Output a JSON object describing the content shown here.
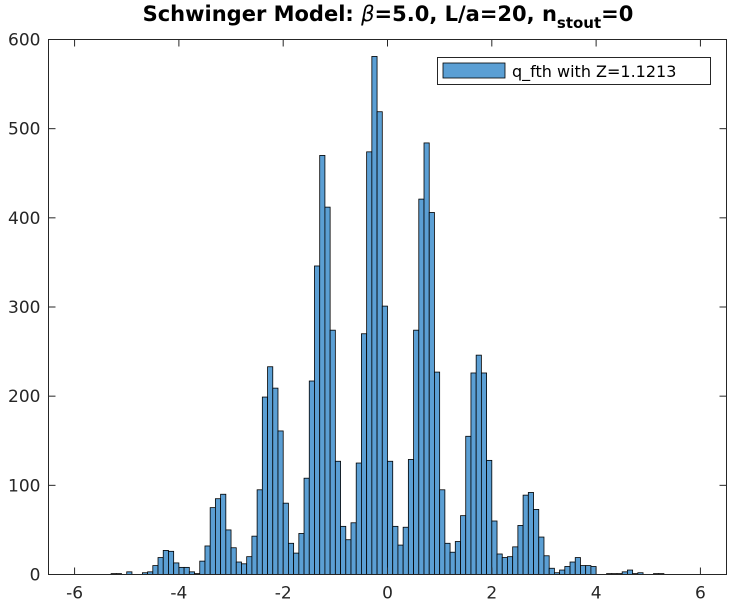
{
  "chart_data": {
    "type": "bar",
    "title": {
      "prefix": "Schwinger Model: ",
      "beta_symbol": "β",
      "middle": "=5.0, L/a=20, n",
      "subscript": "stout",
      "suffix": "=0"
    },
    "legend": {
      "label": "q_fth with Z=1.1213",
      "placement": "top-right"
    },
    "xlim": [
      -6.5,
      6.5
    ],
    "ylim": [
      0,
      600
    ],
    "xticks": [
      -6,
      -4,
      -2,
      0,
      2,
      4,
      6
    ],
    "yticks": [
      0,
      100,
      200,
      300,
      400,
      500,
      600
    ],
    "xtick_labels": [
      "-6",
      "-4",
      "-2",
      "0",
      "2",
      "4",
      "6"
    ],
    "ytick_labels": [
      "0",
      "100",
      "200",
      "300",
      "400",
      "500",
      "600"
    ],
    "bin_width": 0.1,
    "bar_color": "#5b9fd4",
    "bar_edge_color": "#000000",
    "bins": [
      {
        "x": -5.25,
        "y": 1
      },
      {
        "x": -5.15,
        "y": 1
      },
      {
        "x": -4.95,
        "y": 3
      },
      {
        "x": -4.65,
        "y": 2
      },
      {
        "x": -4.55,
        "y": 3
      },
      {
        "x": -4.45,
        "y": 10
      },
      {
        "x": -4.35,
        "y": 19
      },
      {
        "x": -4.25,
        "y": 27
      },
      {
        "x": -4.15,
        "y": 26
      },
      {
        "x": -4.05,
        "y": 13
      },
      {
        "x": -3.95,
        "y": 8
      },
      {
        "x": -3.85,
        "y": 8
      },
      {
        "x": -3.75,
        "y": 3
      },
      {
        "x": -3.65,
        "y": 1
      },
      {
        "x": -3.55,
        "y": 15
      },
      {
        "x": -3.45,
        "y": 32
      },
      {
        "x": -3.35,
        "y": 75
      },
      {
        "x": -3.25,
        "y": 85
      },
      {
        "x": -3.15,
        "y": 90
      },
      {
        "x": -3.05,
        "y": 50
      },
      {
        "x": -2.95,
        "y": 30
      },
      {
        "x": -2.85,
        "y": 14
      },
      {
        "x": -2.75,
        "y": 12
      },
      {
        "x": -2.65,
        "y": 20
      },
      {
        "x": -2.55,
        "y": 43
      },
      {
        "x": -2.45,
        "y": 95
      },
      {
        "x": -2.35,
        "y": 199
      },
      {
        "x": -2.25,
        "y": 233
      },
      {
        "x": -2.15,
        "y": 209
      },
      {
        "x": -2.05,
        "y": 161
      },
      {
        "x": -1.95,
        "y": 80
      },
      {
        "x": -1.85,
        "y": 35
      },
      {
        "x": -1.75,
        "y": 24
      },
      {
        "x": -1.65,
        "y": 46
      },
      {
        "x": -1.55,
        "y": 108
      },
      {
        "x": -1.45,
        "y": 217
      },
      {
        "x": -1.35,
        "y": 346
      },
      {
        "x": -1.25,
        "y": 470
      },
      {
        "x": -1.15,
        "y": 412
      },
      {
        "x": -1.05,
        "y": 274
      },
      {
        "x": -0.95,
        "y": 127
      },
      {
        "x": -0.85,
        "y": 54
      },
      {
        "x": -0.75,
        "y": 39
      },
      {
        "x": -0.65,
        "y": 58
      },
      {
        "x": -0.55,
        "y": 125
      },
      {
        "x": -0.45,
        "y": 270
      },
      {
        "x": -0.35,
        "y": 474
      },
      {
        "x": -0.25,
        "y": 581
      },
      {
        "x": -0.15,
        "y": 519
      },
      {
        "x": -0.05,
        "y": 301
      },
      {
        "x": 0.05,
        "y": 127
      },
      {
        "x": 0.15,
        "y": 54
      },
      {
        "x": 0.25,
        "y": 33
      },
      {
        "x": 0.35,
        "y": 53
      },
      {
        "x": 0.45,
        "y": 129
      },
      {
        "x": 0.55,
        "y": 274
      },
      {
        "x": 0.65,
        "y": 421
      },
      {
        "x": 0.75,
        "y": 484
      },
      {
        "x": 0.85,
        "y": 406
      },
      {
        "x": 0.95,
        "y": 227
      },
      {
        "x": 1.05,
        "y": 95
      },
      {
        "x": 1.15,
        "y": 35
      },
      {
        "x": 1.25,
        "y": 25
      },
      {
        "x": 1.35,
        "y": 37
      },
      {
        "x": 1.45,
        "y": 66
      },
      {
        "x": 1.55,
        "y": 155
      },
      {
        "x": 1.65,
        "y": 226
      },
      {
        "x": 1.75,
        "y": 246
      },
      {
        "x": 1.85,
        "y": 226
      },
      {
        "x": 1.95,
        "y": 128
      },
      {
        "x": 2.05,
        "y": 60
      },
      {
        "x": 2.15,
        "y": 23
      },
      {
        "x": 2.25,
        "y": 19
      },
      {
        "x": 2.35,
        "y": 20
      },
      {
        "x": 2.45,
        "y": 31
      },
      {
        "x": 2.55,
        "y": 55
      },
      {
        "x": 2.65,
        "y": 89
      },
      {
        "x": 2.75,
        "y": 92
      },
      {
        "x": 2.85,
        "y": 73
      },
      {
        "x": 2.95,
        "y": 42
      },
      {
        "x": 3.05,
        "y": 21
      },
      {
        "x": 3.15,
        "y": 7
      },
      {
        "x": 3.25,
        "y": 2
      },
      {
        "x": 3.35,
        "y": 5
      },
      {
        "x": 3.45,
        "y": 9
      },
      {
        "x": 3.55,
        "y": 14
      },
      {
        "x": 3.65,
        "y": 19
      },
      {
        "x": 3.75,
        "y": 10
      },
      {
        "x": 3.85,
        "y": 10
      },
      {
        "x": 3.95,
        "y": 9
      },
      {
        "x": 4.25,
        "y": 1
      },
      {
        "x": 4.35,
        "y": 1
      },
      {
        "x": 4.45,
        "y": 1
      },
      {
        "x": 4.55,
        "y": 3
      },
      {
        "x": 4.65,
        "y": 5
      },
      {
        "x": 4.75,
        "y": 1
      },
      {
        "x": 4.85,
        "y": 2
      },
      {
        "x": 5.15,
        "y": 1
      },
      {
        "x": 5.25,
        "y": 1
      }
    ]
  }
}
